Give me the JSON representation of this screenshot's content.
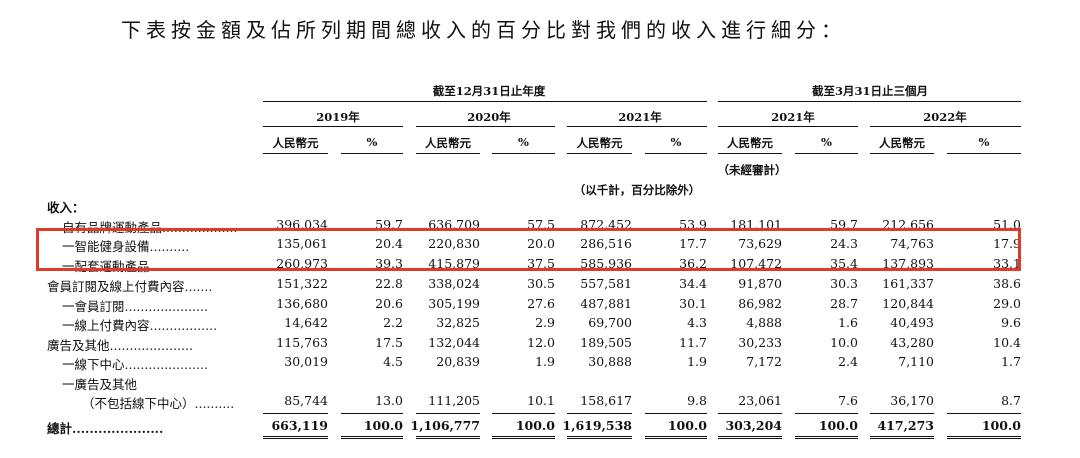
{
  "heading": "下表按金額及佔所列期間總收入的百分比對我們的收入進行細分：",
  "headers": {
    "year_group": "截至12月31日止年度",
    "quarter_group": "截至3月31日止三個月",
    "columns": [
      {
        "period": "2019年",
        "amount": "人民幣元",
        "pct": "%"
      },
      {
        "period": "2020年",
        "amount": "人民幣元",
        "pct": "%"
      },
      {
        "period": "2021年",
        "amount": "人民幣元",
        "pct": "%"
      },
      {
        "period": "2021年",
        "amount": "人民幣元",
        "pct": "%"
      },
      {
        "period": "2022年",
        "amount": "人民幣元",
        "pct": "%"
      }
    ],
    "unaudited": "（未經審計）",
    "unit_note": "（以千計，百分比除外）"
  },
  "section_label": "收入：",
  "rows": [
    {
      "label": "自有品牌運動產品...................",
      "values": [
        "396,034",
        "59.7",
        "636,709",
        "57.5",
        "872,452",
        "53.9",
        "181,101",
        "59.7",
        "212,656",
        "51.0"
      ]
    },
    {
      "label": "一智能健身設備..........",
      "values": [
        "135,061",
        "20.4",
        "220,830",
        "20.0",
        "286,516",
        "17.7",
        "73,629",
        "24.3",
        "74,763",
        "17.9"
      ]
    },
    {
      "label": "一配套運動產品............",
      "values": [
        "260,973",
        "39.3",
        "415,879",
        "37.5",
        "585,936",
        "36.2",
        "107,472",
        "35.4",
        "137,893",
        "33.1"
      ]
    },
    {
      "label": "會員訂閱及線上付費內容.......",
      "values": [
        "151,322",
        "22.8",
        "338,024",
        "30.5",
        "557,581",
        "34.4",
        "91,870",
        "30.3",
        "161,337",
        "38.6"
      ]
    },
    {
      "label": "一會員訂閱.....................",
      "values": [
        "136,680",
        "20.6",
        "305,199",
        "27.6",
        "487,881",
        "30.1",
        "86,982",
        "28.7",
        "120,844",
        "29.0"
      ]
    },
    {
      "label": "一線上付費內容.................",
      "values": [
        "14,642",
        "2.2",
        "32,825",
        "2.9",
        "69,700",
        "4.3",
        "4,888",
        "1.6",
        "40,493",
        "9.6"
      ]
    },
    {
      "label": "廣告及其他.....................",
      "values": [
        "115,763",
        "17.5",
        "132,044",
        "12.0",
        "189,505",
        "11.7",
        "30,233",
        "10.0",
        "43,280",
        "10.4"
      ]
    },
    {
      "label": "一線下中心.....................",
      "values": [
        "30,019",
        "4.5",
        "20,839",
        "1.9",
        "30,888",
        "1.9",
        "7,172",
        "2.4",
        "7,110",
        "1.7"
      ]
    },
    {
      "label": "一廣告及其他",
      "values": [
        "",
        "",
        "",
        "",
        "",
        "",
        "",
        "",
        "",
        ""
      ]
    },
    {
      "label": "（不包括線下中心）..........",
      "values": [
        "85,744",
        "13.0",
        "111,205",
        "10.1",
        "158,617",
        "9.8",
        "23,061",
        "7.6",
        "36,170",
        "8.7"
      ]
    },
    {
      "label": "總計.....................",
      "values": [
        "663,119",
        "100.0",
        "1,106,777",
        "100.0",
        "1,619,538",
        "100.0",
        "303,204",
        "100.0",
        "417,273",
        "100.0"
      ]
    }
  ]
}
